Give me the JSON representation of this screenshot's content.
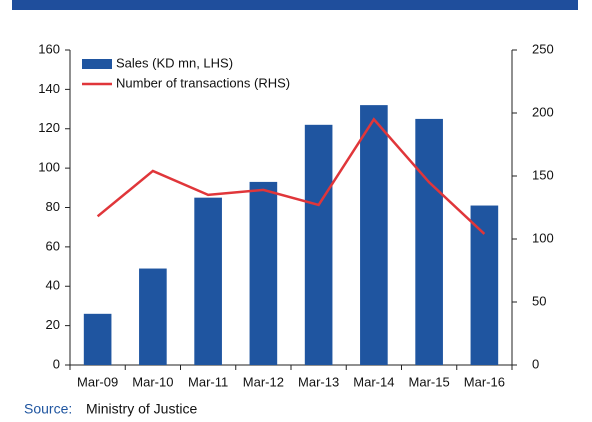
{
  "chart_data": {
    "type": "bar",
    "categories": [
      "Mar-09",
      "Mar-10",
      "Mar-11",
      "Mar-12",
      "Mar-13",
      "Mar-14",
      "Mar-15",
      "Mar-16"
    ],
    "series": [
      {
        "name": "Sales (KD mn, LHS)",
        "type": "bar",
        "color": "#1f55a0",
        "values": [
          26,
          49,
          85,
          93,
          122,
          132,
          125,
          81
        ]
      },
      {
        "name": "Number of transactions (RHS)",
        "type": "line",
        "axis": "y2",
        "color": "#e0363a",
        "values": [
          118,
          154,
          135,
          139,
          127,
          195,
          145,
          104
        ]
      }
    ],
    "ylim": [
      0,
      160
    ],
    "yticks": [
      0,
      20,
      40,
      60,
      80,
      100,
      120,
      140,
      160
    ],
    "y2lim": [
      0,
      250
    ],
    "y2ticks": [
      0,
      50,
      100,
      150,
      200,
      250
    ],
    "legend": "upper-left",
    "source_label": "Source:",
    "source": "Ministry of Justice"
  }
}
